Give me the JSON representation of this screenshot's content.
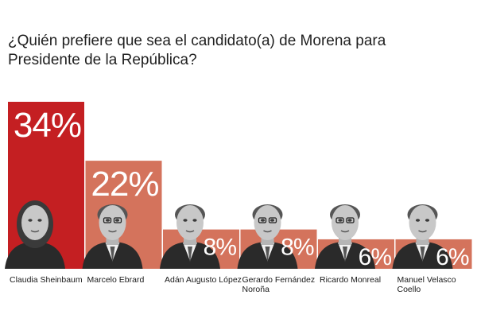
{
  "title": "¿Quién prefiere que sea el candidato(a) de Morena para Presidente de la República?",
  "colors": {
    "leader": "#c41f22",
    "others": "#d4735c",
    "portrait_bg": "#d9d9d9",
    "portrait_dark": "#2a2a2a"
  },
  "chart_data": {
    "type": "bar",
    "title": "¿Quién prefiere que sea el candidato(a) de Morena para Presidente de la República?",
    "categories": [
      "Claudia Sheinbaum",
      "Marcelo Ebrard",
      "Adán Augusto López",
      "Gerardo Fernández Noroña",
      "Ricardo Monreal",
      "Manuel Velasco Coello"
    ],
    "values": [
      34,
      22,
      8,
      8,
      6,
      6
    ],
    "value_labels": [
      "34%",
      "22%",
      "8%",
      "8%",
      "6%",
      "6%"
    ],
    "name_lines": [
      [
        "Claudia Sheinbaum"
      ],
      [
        "Marcelo Ebrard"
      ],
      [
        "Adán Augusto López"
      ],
      [
        "Gerardo Fernández",
        "Noroña"
      ],
      [
        "Ricardo Monreal"
      ],
      [
        "Manuel Velasco",
        "Coello"
      ]
    ],
    "xlabel": "",
    "ylabel": "",
    "ylim": [
      0,
      34
    ],
    "grid": false,
    "legend": "none",
    "unit": "%"
  }
}
